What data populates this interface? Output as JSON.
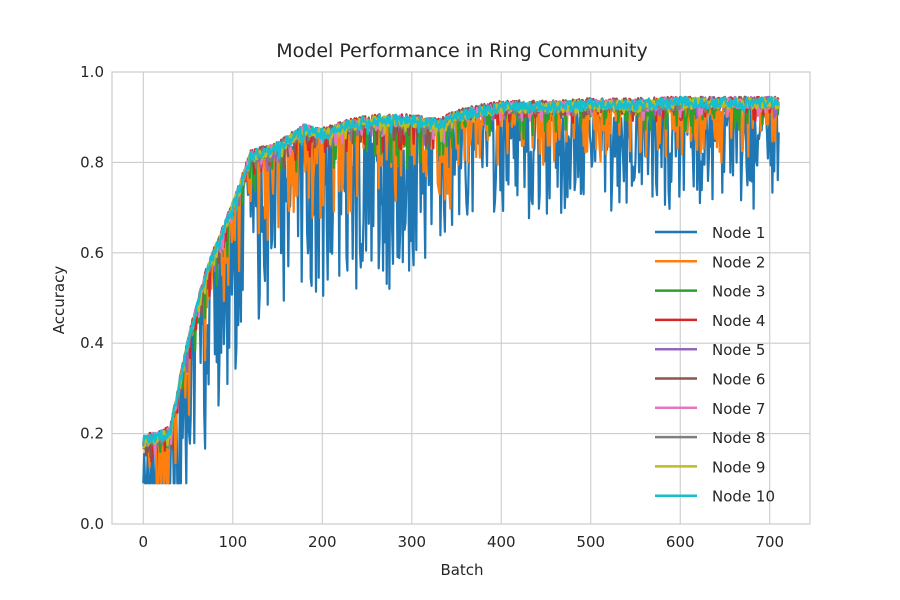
{
  "chart_data": {
    "type": "line",
    "title": "Model Performance in Ring Community",
    "xlabel": "Batch",
    "ylabel": "Accuracy",
    "xlim": [
      -35,
      745
    ],
    "ylim": [
      0.0,
      1.0
    ],
    "xticks": [
      0,
      100,
      200,
      300,
      400,
      500,
      600,
      700
    ],
    "yticks": [
      "0.0",
      "0.2",
      "0.4",
      "0.6",
      "0.8",
      "1.0"
    ],
    "grid": true,
    "legend": "lower-right",
    "base_curve": {
      "x": [
        0,
        30,
        50,
        70,
        100,
        120,
        150,
        180,
        200,
        230,
        260,
        300,
        330,
        350,
        400,
        450,
        500,
        550,
        600,
        650,
        710
      ],
      "y": [
        0.18,
        0.2,
        0.4,
        0.55,
        0.7,
        0.81,
        0.83,
        0.87,
        0.86,
        0.88,
        0.89,
        0.89,
        0.88,
        0.9,
        0.92,
        0.92,
        0.925,
        0.925,
        0.93,
        0.93,
        0.93
      ]
    },
    "series": [
      {
        "name": "Node 1",
        "color": "#1f77b4",
        "drop_scale": 0.22,
        "drop_rate": 0.55,
        "seed": 11,
        "offset": -0.015
      },
      {
        "name": "Node 2",
        "color": "#ff7f0e",
        "drop_scale": 0.12,
        "drop_rate": 0.3,
        "seed": 23,
        "offset": -0.008
      },
      {
        "name": "Node 3",
        "color": "#2ca02c",
        "drop_scale": 0.06,
        "drop_rate": 0.18,
        "seed": 37,
        "offset": 0.0
      },
      {
        "name": "Node 4",
        "color": "#d62728",
        "drop_scale": 0.04,
        "drop_rate": 0.14,
        "seed": 41,
        "offset": 0.004
      },
      {
        "name": "Node 5",
        "color": "#9467bd",
        "drop_scale": 0.03,
        "drop_rate": 0.12,
        "seed": 53,
        "offset": 0.003
      },
      {
        "name": "Node 6",
        "color": "#8c564b",
        "drop_scale": 0.03,
        "drop_rate": 0.1,
        "seed": 67,
        "offset": 0.005
      },
      {
        "name": "Node 7",
        "color": "#e377c2",
        "drop_scale": 0.025,
        "drop_rate": 0.1,
        "seed": 71,
        "offset": 0.002
      },
      {
        "name": "Node 8",
        "color": "#7f7f7f",
        "drop_scale": 0.02,
        "drop_rate": 0.08,
        "seed": 83,
        "offset": 0.0
      },
      {
        "name": "Node 9",
        "color": "#bcbd22",
        "drop_scale": 0.02,
        "drop_rate": 0.08,
        "seed": 97,
        "offset": 0.001
      },
      {
        "name": "Node 10",
        "color": "#17becf",
        "drop_scale": 0.015,
        "drop_rate": 0.06,
        "seed": 101,
        "offset": 0.003
      }
    ],
    "n_points": 711
  }
}
